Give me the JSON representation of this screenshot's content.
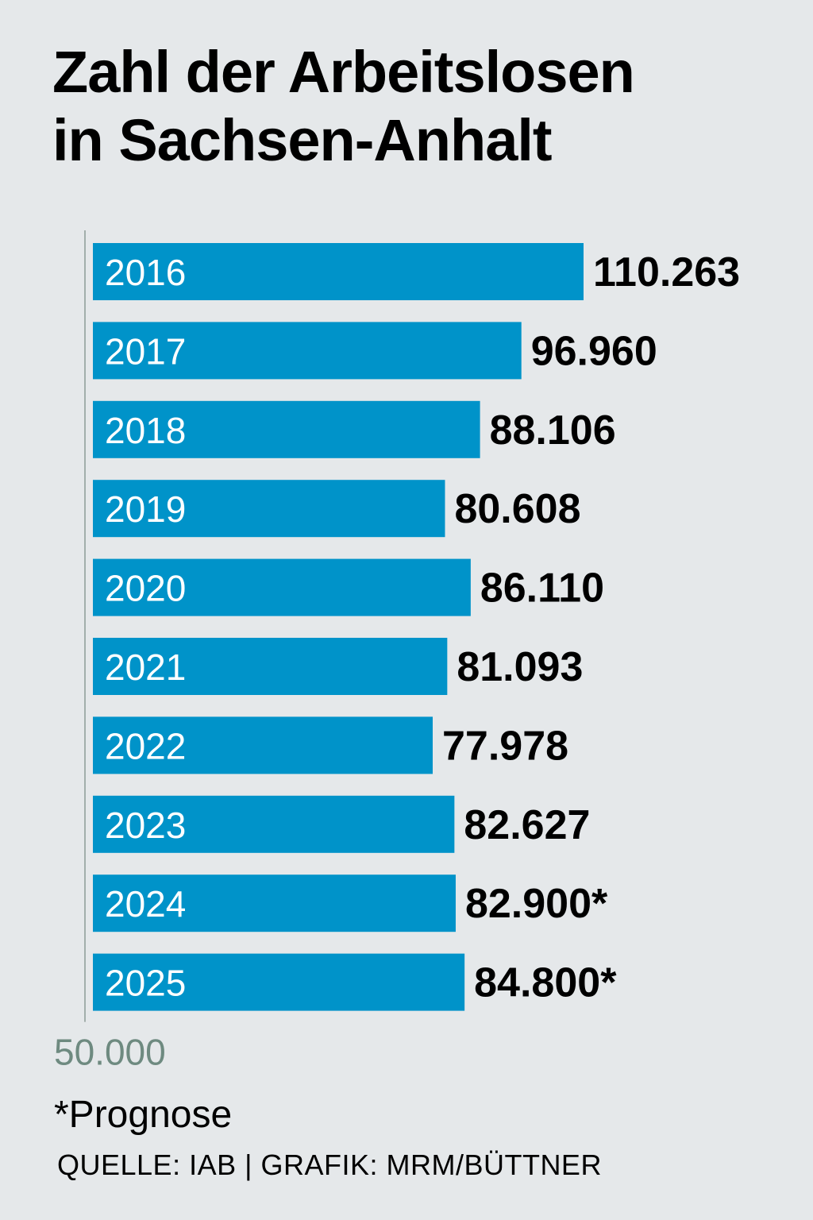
{
  "title_line1": "Zahl der Arbeitslosen",
  "title_line2": "in Sachsen-Anhalt",
  "footnote": "*Prognose",
  "source": "QUELLE: IAB | GRAFIK: MRM/BÜTTNER",
  "colors": {
    "bar": "#0093c9",
    "background": "#e5e8ea",
    "axis_label": "#6e8a80",
    "year_label": "#ffffff",
    "value_label": "#000000"
  },
  "chart_data": {
    "type": "bar",
    "orientation": "horizontal",
    "categories": [
      "2016",
      "2017",
      "2018",
      "2019",
      "2020",
      "2021",
      "2022",
      "2023",
      "2024",
      "2025"
    ],
    "values": [
      110263,
      96960,
      88106,
      80608,
      86110,
      81093,
      77978,
      82627,
      82900,
      84800
    ],
    "value_labels": [
      "110.263",
      "96.960",
      "88.106",
      "80.608",
      "86.110",
      "81.093",
      "77.978",
      "82.627",
      "82.900*",
      "84.800*"
    ],
    "axis_min": 50000,
    "axis_min_label": "50.000",
    "grid": false
  }
}
